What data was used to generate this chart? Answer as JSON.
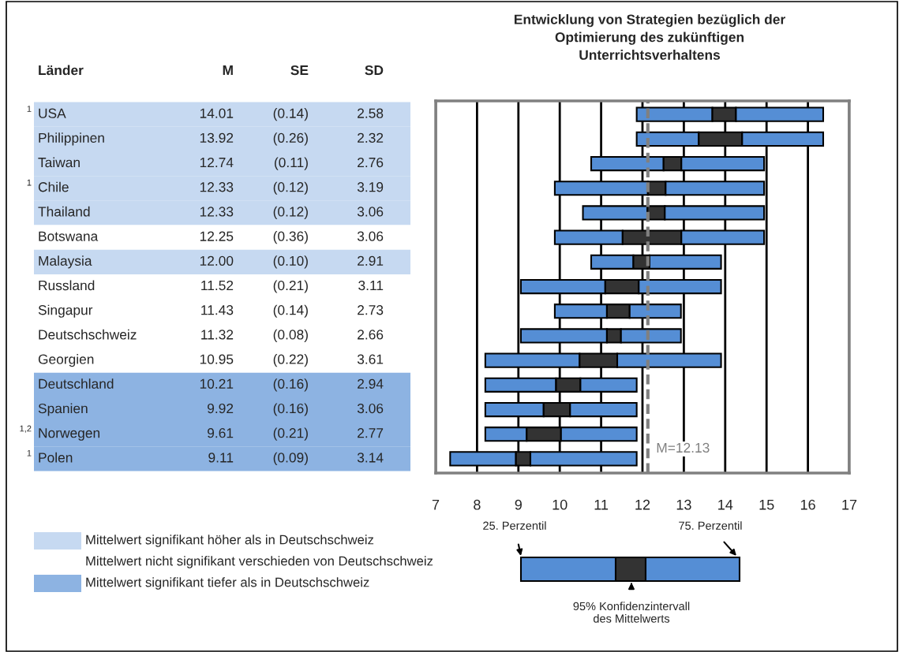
{
  "chart_data": [
    {
      "type": "other",
      "ylabel": "Länder",
      "categories": [
        "USA",
        "Philippinen",
        "Taiwan",
        "Chile",
        "Thailand",
        "Botswana",
        "Malaysia",
        "Russland",
        "Singapur",
        "Deutschschweiz",
        "Georgien",
        "Deutschland",
        "Spanien",
        "Norwegen",
        "Polen"
      ],
      "series": [
        {
          "name": "M",
          "colors": [
            "#c6d9f1",
            "#c6d9f1",
            "#c6d9f1",
            "#c6d9f1",
            "#c6d9f1",
            "#ffffff",
            "#c6d9f1",
            "#ffffff",
            "#ffffff",
            "#ffffff",
            "#ffffff",
            "#8db3e2",
            "#8db3e2",
            "#8db3e2",
            "#8db3e2"
          ],
          "values": [
            14.01,
            13.92,
            12.74,
            12.33,
            12.33,
            12.25,
            12.0,
            11.52,
            11.43,
            11.32,
            10.95,
            10.21,
            9.92,
            9.61,
            9.11
          ],
          "value_labels": [
            "14.01",
            "13.92",
            "12.74",
            "12.33",
            "12.33",
            "12.25",
            "12.00",
            "11.52",
            "11.43",
            "11.32",
            "10.95",
            "10.21",
            "9.92",
            "9.61",
            "9.11"
          ]
        },
        {
          "name": "SE",
          "values": [
            0.14,
            0.26,
            0.11,
            0.12,
            0.12,
            0.36,
            0.1,
            0.21,
            0.14,
            0.08,
            0.22,
            0.16,
            0.16,
            0.21,
            0.09
          ],
          "value_labels": [
            "(0.14)",
            "(0.26)",
            "(0.11)",
            "(0.12)",
            "(0.12)",
            "(0.36)",
            "(0.10)",
            "(0.21)",
            "(0.14)",
            "(0.08)",
            "(0.22)",
            "(0.16)",
            "(0.16)",
            "(0.21)",
            "(0.09)"
          ]
        },
        {
          "name": "SD",
          "values": [
            2.58,
            2.32,
            2.76,
            3.19,
            3.06,
            3.06,
            2.91,
            3.11,
            2.73,
            2.66,
            3.61,
            2.94,
            3.06,
            2.77,
            3.14
          ],
          "value_labels": [
            "2.58",
            "2.32",
            "2.76",
            "3.19",
            "3.06",
            "3.06",
            "2.91",
            "3.11",
            "2.73",
            "2.66",
            "3.61",
            "2.94",
            "3.06",
            "2.77",
            "3.14"
          ]
        }
      ],
      "annotations": [
        {
          "text": "1",
          "y": "USA"
        },
        {
          "text": "1",
          "y": "Chile"
        },
        {
          "text": "1,2",
          "y": "Norwegen"
        },
        {
          "text": "1",
          "y": "Polen"
        },
        "Mittelwert signifikant höher als in Deutschschweiz",
        "Mittelwert nicht signifikant verschieden von Deutschschweiz",
        "Mittelwert signifikant tiefer als in Deutschschweiz"
      ]
    },
    {
      "type": "bar",
      "orientation": "horizontal",
      "title": "Entwicklung von Strategien bezüglich der\nOptimierung des zukünftigen\nUnterrichtsverhaltens",
      "categories": [
        null,
        null,
        null,
        null,
        null,
        null,
        null,
        null,
        null,
        null,
        null,
        null,
        null,
        null,
        null
      ],
      "series": [
        {
          "color": "#558ed5",
          "base": [
            11.86,
            11.86,
            10.76,
            9.88,
            10.56,
            9.88,
            10.76,
            9.06,
            9.88,
            9.06,
            8.2,
            8.2,
            8.2,
            8.2,
            7.35
          ],
          "values": [
            1.83,
            1.5,
            1.75,
            2.25,
            1.56,
            1.64,
            1.02,
            2.04,
            1.26,
            2.08,
            2.28,
            1.71,
            1.41,
            1.0,
            1.59
          ]
        },
        {
          "color": "#333333",
          "base": [
            13.69,
            13.36,
            12.51,
            12.13,
            12.12,
            11.52,
            11.78,
            11.1,
            11.14,
            11.14,
            10.48,
            9.91,
            9.61,
            9.2,
            8.94
          ],
          "values": [
            0.57,
            1.05,
            0.43,
            0.43,
            0.42,
            1.42,
            0.39,
            0.81,
            0.55,
            0.34,
            0.91,
            0.59,
            0.64,
            0.83,
            0.35
          ]
        },
        {
          "color": "#558ed5",
          "base": [
            14.26,
            14.41,
            12.94,
            12.56,
            12.54,
            12.94,
            12.17,
            11.91,
            11.69,
            11.48,
            11.39,
            10.5,
            10.25,
            10.03,
            9.29
          ],
          "values": [
            2.11,
            1.96,
            2.0,
            2.38,
            2.4,
            2.0,
            1.73,
            1.99,
            1.24,
            1.45,
            2.51,
            1.36,
            1.61,
            1.83,
            2.57
          ]
        }
      ],
      "xlim": [
        7,
        17
      ],
      "xticks": [
        7,
        8,
        9,
        10,
        11,
        12,
        13,
        14,
        15,
        16,
        17
      ],
      "grid": "x",
      "tick_labels": "x",
      "ref_lines": [
        {
          "axis": "x",
          "value": 12.13,
          "label": "M=12.13",
          "color": "#808080",
          "line_style": "dashed"
        }
      ],
      "annotations": [
        "25. Perzentil",
        "75. Perzentil",
        "95% Konfidenzintervall\ndes Mittelwerts"
      ]
    }
  ]
}
